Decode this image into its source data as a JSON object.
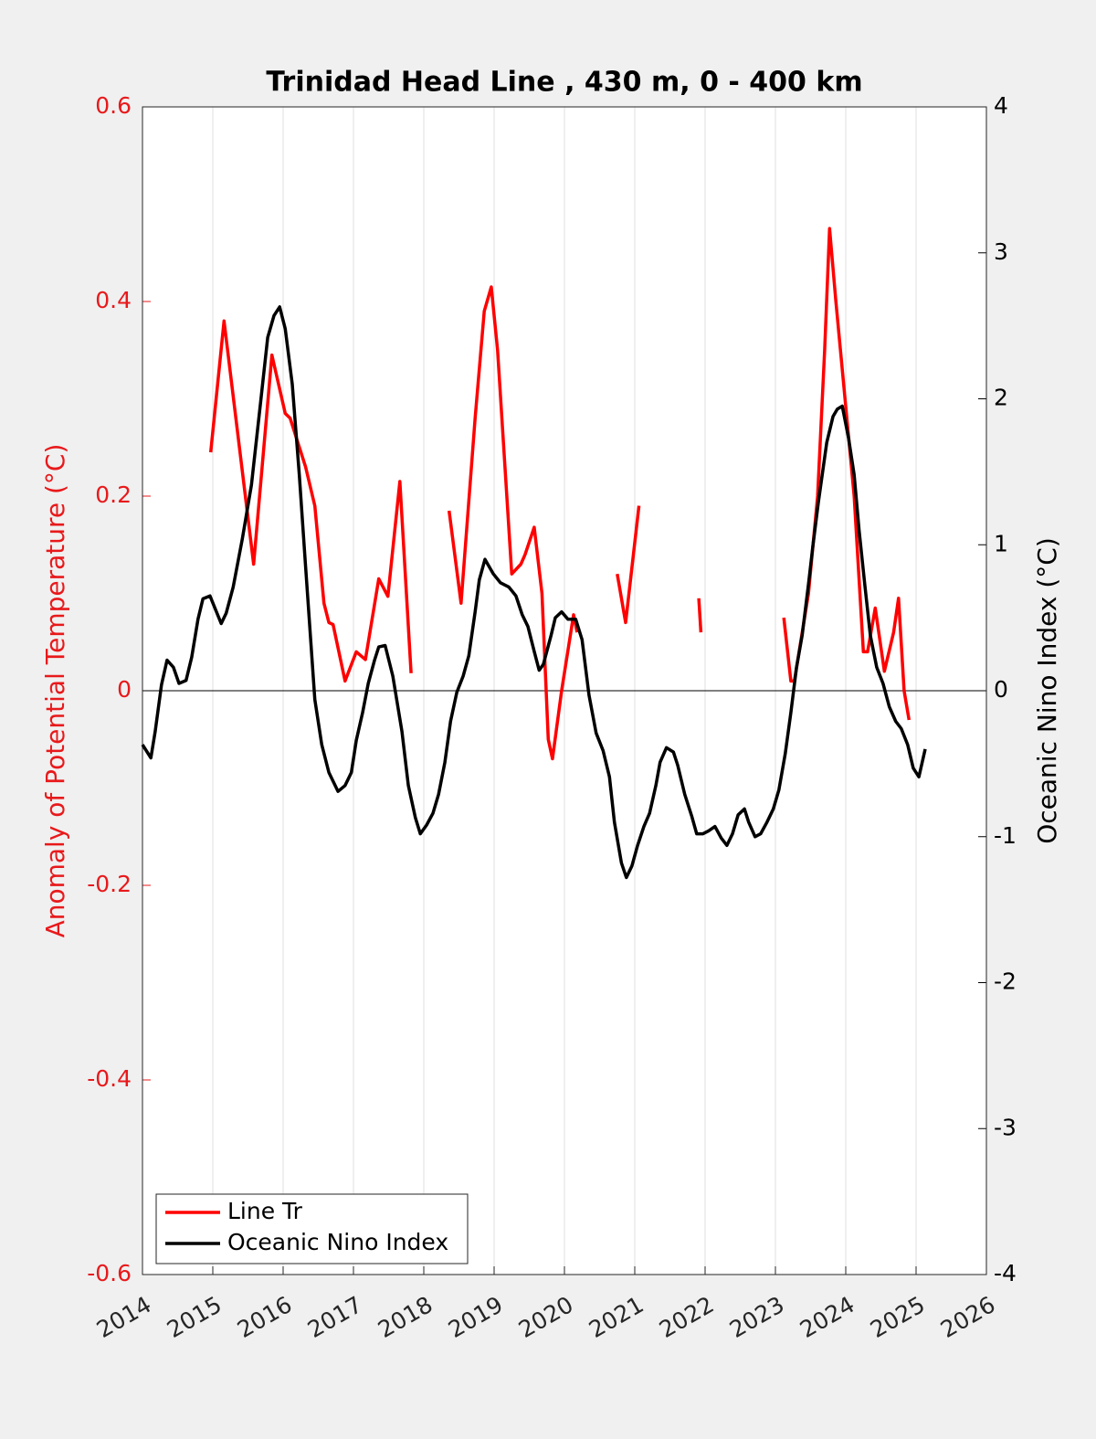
{
  "chart_data": {
    "type": "line",
    "title": "Trinidad Head Line , 430 m, 0 - 400 km",
    "ylabel": "Anomaly of Potential Temperature (°C)",
    "y2label": "Oceanic Nino Index (°C)",
    "xlim": [
      2014,
      2026
    ],
    "xticks": [
      2014,
      2015,
      2016,
      2017,
      2018,
      2019,
      2020,
      2021,
      2022,
      2023,
      2024,
      2025,
      2026
    ],
    "ylim": [
      -0.6,
      0.6
    ],
    "yticks": [
      -0.6,
      -0.4,
      -0.2,
      0,
      0.2,
      0.4,
      0.6
    ],
    "y2lim": [
      -4,
      4
    ],
    "y2ticks": [
      -4,
      -3,
      -2,
      -1,
      0,
      1,
      2,
      3,
      4
    ],
    "ycolor": "#e8191b",
    "y2color": "#000000",
    "grid": "x",
    "zero_line": true,
    "legend_location": "lower left",
    "series": [
      {
        "name": "Line Tr",
        "color": "#ff0000",
        "x": [
          2014.97,
          2015.16,
          2015.58,
          2015.84,
          2016.03,
          2016.1,
          2016.32,
          2016.45,
          2016.58,
          2016.65,
          2016.71,
          2016.88,
          2017.04,
          2017.17,
          2017.36,
          2017.49,
          2017.66,
          2017.82,
          2018.1,
          2018.36,
          2018.53,
          2018.73,
          2018.86,
          2018.96,
          2019.05,
          2019.25,
          2019.38,
          2019.44,
          2019.57,
          2019.68,
          2019.77,
          2019.83,
          2019.96,
          2020.13,
          2020.18,
          2020.45,
          2020.75,
          2020.87,
          2021.06,
          2021.5,
          2021.91,
          2021.94,
          2022.5,
          2023.12,
          2023.22,
          2023.27,
          2023.47,
          2023.6,
          2023.7,
          2023.77,
          2023.86,
          2023.99,
          2024.12,
          2024.25,
          2024.31,
          2024.42,
          2024.55,
          2024.68,
          2024.75,
          2024.83,
          2024.9
        ],
        "values": [
          0.245,
          0.38,
          0.13,
          0.345,
          0.285,
          0.28,
          0.23,
          0.19,
          0.09,
          0.07,
          0.068,
          0.01,
          0.04,
          0.032,
          0.115,
          0.097,
          0.215,
          0.018,
          null,
          0.185,
          0.09,
          0.28,
          0.39,
          0.415,
          0.35,
          0.12,
          0.13,
          0.14,
          0.168,
          0.1,
          -0.05,
          -0.07,
          0.0,
          0.078,
          0.06,
          null,
          0.12,
          0.07,
          0.19,
          null,
          0.095,
          0.06,
          null,
          0.075,
          0.01,
          0.01,
          0.1,
          0.2,
          0.35,
          0.475,
          0.4,
          0.3,
          0.2,
          0.04,
          0.04,
          0.085,
          0.02,
          0.06,
          0.095,
          0.0,
          -0.03
        ]
      },
      {
        "name": "Oceanic Nino Index",
        "color": "#000000",
        "axis": "y2",
        "x": [
          2014.0,
          2014.12,
          2014.18,
          2014.27,
          2014.35,
          2014.44,
          2014.52,
          2014.62,
          2014.7,
          2014.79,
          2014.86,
          2014.96,
          2015.12,
          2015.19,
          2015.29,
          2015.42,
          2015.55,
          2015.68,
          2015.78,
          2015.87,
          2015.95,
          2016.03,
          2016.13,
          2016.23,
          2016.32,
          2016.45,
          2016.55,
          2016.65,
          2016.78,
          2016.88,
          2016.97,
          2017.04,
          2017.13,
          2017.21,
          2017.3,
          2017.36,
          2017.45,
          2017.56,
          2017.69,
          2017.78,
          2017.88,
          2017.95,
          2018.04,
          2018.13,
          2018.21,
          2018.3,
          2018.38,
          2018.47,
          2018.56,
          2018.64,
          2018.73,
          2018.79,
          2018.87,
          2018.99,
          2019.09,
          2019.21,
          2019.31,
          2019.4,
          2019.48,
          2019.57,
          2019.64,
          2019.7,
          2019.81,
          2019.87,
          2019.96,
          2020.05,
          2020.16,
          2020.25,
          2020.35,
          2020.45,
          2020.55,
          2020.64,
          2020.71,
          2020.81,
          2020.88,
          2020.96,
          2021.04,
          2021.13,
          2021.21,
          2021.3,
          2021.36,
          2021.45,
          2021.55,
          2021.61,
          2021.71,
          2021.81,
          2021.88,
          2021.97,
          2022.05,
          2022.14,
          2022.23,
          2022.31,
          2022.39,
          2022.47,
          2022.56,
          2022.62,
          2022.71,
          2022.79,
          2022.88,
          2022.97,
          2023.05,
          2023.14,
          2023.22,
          2023.3,
          2023.38,
          2023.47,
          2023.53,
          2023.61,
          2023.73,
          2023.82,
          2023.88,
          2023.95,
          2024.04,
          2024.12,
          2024.19,
          2024.27,
          2024.35,
          2024.44,
          2024.53,
          2024.62,
          2024.71,
          2024.79,
          2024.88,
          2024.96,
          2025.04,
          2025.13
        ],
        "values": [
          -0.37,
          -0.46,
          -0.28,
          0.04,
          0.21,
          0.16,
          0.05,
          0.07,
          0.23,
          0.49,
          0.63,
          0.65,
          0.46,
          0.53,
          0.71,
          1.04,
          1.41,
          1.98,
          2.42,
          2.57,
          2.63,
          2.48,
          2.1,
          1.48,
          0.85,
          -0.06,
          -0.37,
          -0.56,
          -0.69,
          -0.65,
          -0.56,
          -0.34,
          -0.15,
          0.05,
          0.21,
          0.3,
          0.31,
          0.1,
          -0.28,
          -0.65,
          -0.87,
          -0.98,
          -0.92,
          -0.84,
          -0.71,
          -0.49,
          -0.21,
          -0.01,
          0.1,
          0.24,
          0.54,
          0.76,
          0.9,
          0.8,
          0.74,
          0.71,
          0.65,
          0.52,
          0.44,
          0.27,
          0.14,
          0.18,
          0.38,
          0.5,
          0.54,
          0.49,
          0.49,
          0.35,
          -0.03,
          -0.29,
          -0.41,
          -0.59,
          -0.9,
          -1.18,
          -1.28,
          -1.2,
          -1.06,
          -0.93,
          -0.84,
          -0.65,
          -0.49,
          -0.39,
          -0.42,
          -0.51,
          -0.71,
          -0.86,
          -0.98,
          -0.98,
          -0.96,
          -0.93,
          -1.01,
          -1.06,
          -0.98,
          -0.85,
          -0.81,
          -0.9,
          -1.0,
          -0.98,
          -0.9,
          -0.81,
          -0.68,
          -0.43,
          -0.15,
          0.16,
          0.38,
          0.73,
          0.98,
          1.29,
          1.7,
          1.88,
          1.93,
          1.95,
          1.73,
          1.48,
          1.1,
          0.73,
          0.38,
          0.16,
          0.05,
          -0.11,
          -0.21,
          -0.26,
          -0.37,
          -0.53,
          -0.59,
          -0.4
        ]
      }
    ]
  }
}
